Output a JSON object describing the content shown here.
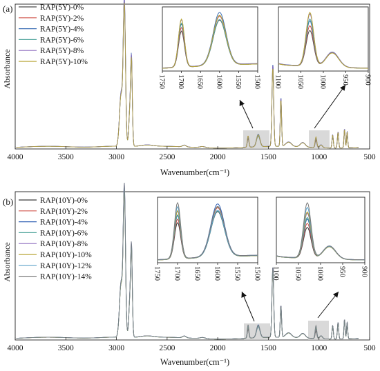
{
  "chart_data": [
    {
      "type": "line",
      "panel_label": "(a)",
      "xlabel": "Wavenumber(cm⁻¹)",
      "ylabel": "Absorbance",
      "xlim": [
        4000,
        500
      ],
      "x_reversed": true,
      "x_ticks": [
        4000,
        3500,
        3000,
        2500,
        2000,
        1500,
        1000,
        500
      ],
      "legend_position": "top-left",
      "series": [
        {
          "name": "RAP(5Y)-0%",
          "color": "#4a4a4a"
        },
        {
          "name": "RAP(5Y)-2%",
          "color": "#d0544a"
        },
        {
          "name": "RAP(5Y)-4%",
          "color": "#3d6fb5"
        },
        {
          "name": "RAP(5Y)-6%",
          "color": "#4da39a"
        },
        {
          "name": "RAP(5Y)-8%",
          "color": "#8e6bbf"
        },
        {
          "name": "RAP(5Y)-10%",
          "color": "#b7a534"
        }
      ],
      "key_peaks_cm": [
        2920,
        2850,
        1700,
        1600,
        1460,
        1375,
        1030,
        865,
        810,
        745,
        720
      ],
      "insets": [
        {
          "xlim": [
            1750,
            1500
          ],
          "x_ticks": [
            1750,
            1700,
            1650,
            1600,
            1550,
            1500
          ]
        },
        {
          "xlim": [
            1100,
            900
          ],
          "x_ticks": [
            1100,
            1050,
            1000,
            950,
            900
          ]
        }
      ],
      "highlight_regions_cm": [
        [
          1750,
          1500
        ],
        [
          1100,
          900
        ]
      ]
    },
    {
      "type": "line",
      "panel_label": "(b)",
      "xlabel": "Wavenumber(cm⁻¹)",
      "ylabel": "Absorbance",
      "xlim": [
        4000,
        500
      ],
      "x_reversed": true,
      "x_ticks": [
        4000,
        3500,
        3000,
        2500,
        2000,
        1500,
        1000,
        500
      ],
      "legend_position": "top-left",
      "series": [
        {
          "name": "RAP(10Y)-0%",
          "color": "#3a3a3a"
        },
        {
          "name": "RAP(10Y)-2%",
          "color": "#d0544a"
        },
        {
          "name": "RAP(10Y)-4%",
          "color": "#2f5fb3"
        },
        {
          "name": "RAP(10Y)-6%",
          "color": "#4da39a"
        },
        {
          "name": "RAP(10Y)-8%",
          "color": "#8e6bbf"
        },
        {
          "name": "RAP(10Y)-10%",
          "color": "#b7a534"
        },
        {
          "name": "RAP(10Y)-12%",
          "color": "#5aa0c8"
        },
        {
          "name": "RAP(10Y)-14%",
          "color": "#7a7a7a"
        }
      ],
      "key_peaks_cm": [
        2920,
        2850,
        1700,
        1600,
        1460,
        1375,
        1030,
        865,
        810,
        745,
        720
      ],
      "insets": [
        {
          "xlim": [
            1750,
            1500
          ],
          "x_ticks": [
            1750,
            1700,
            1650,
            1600,
            1550,
            1500
          ]
        },
        {
          "xlim": [
            1100,
            900
          ],
          "x_ticks": [
            1100,
            1050,
            1000,
            950,
            900
          ]
        }
      ],
      "highlight_regions_cm": [
        [
          1750,
          1500
        ],
        [
          1100,
          900
        ]
      ]
    }
  ]
}
